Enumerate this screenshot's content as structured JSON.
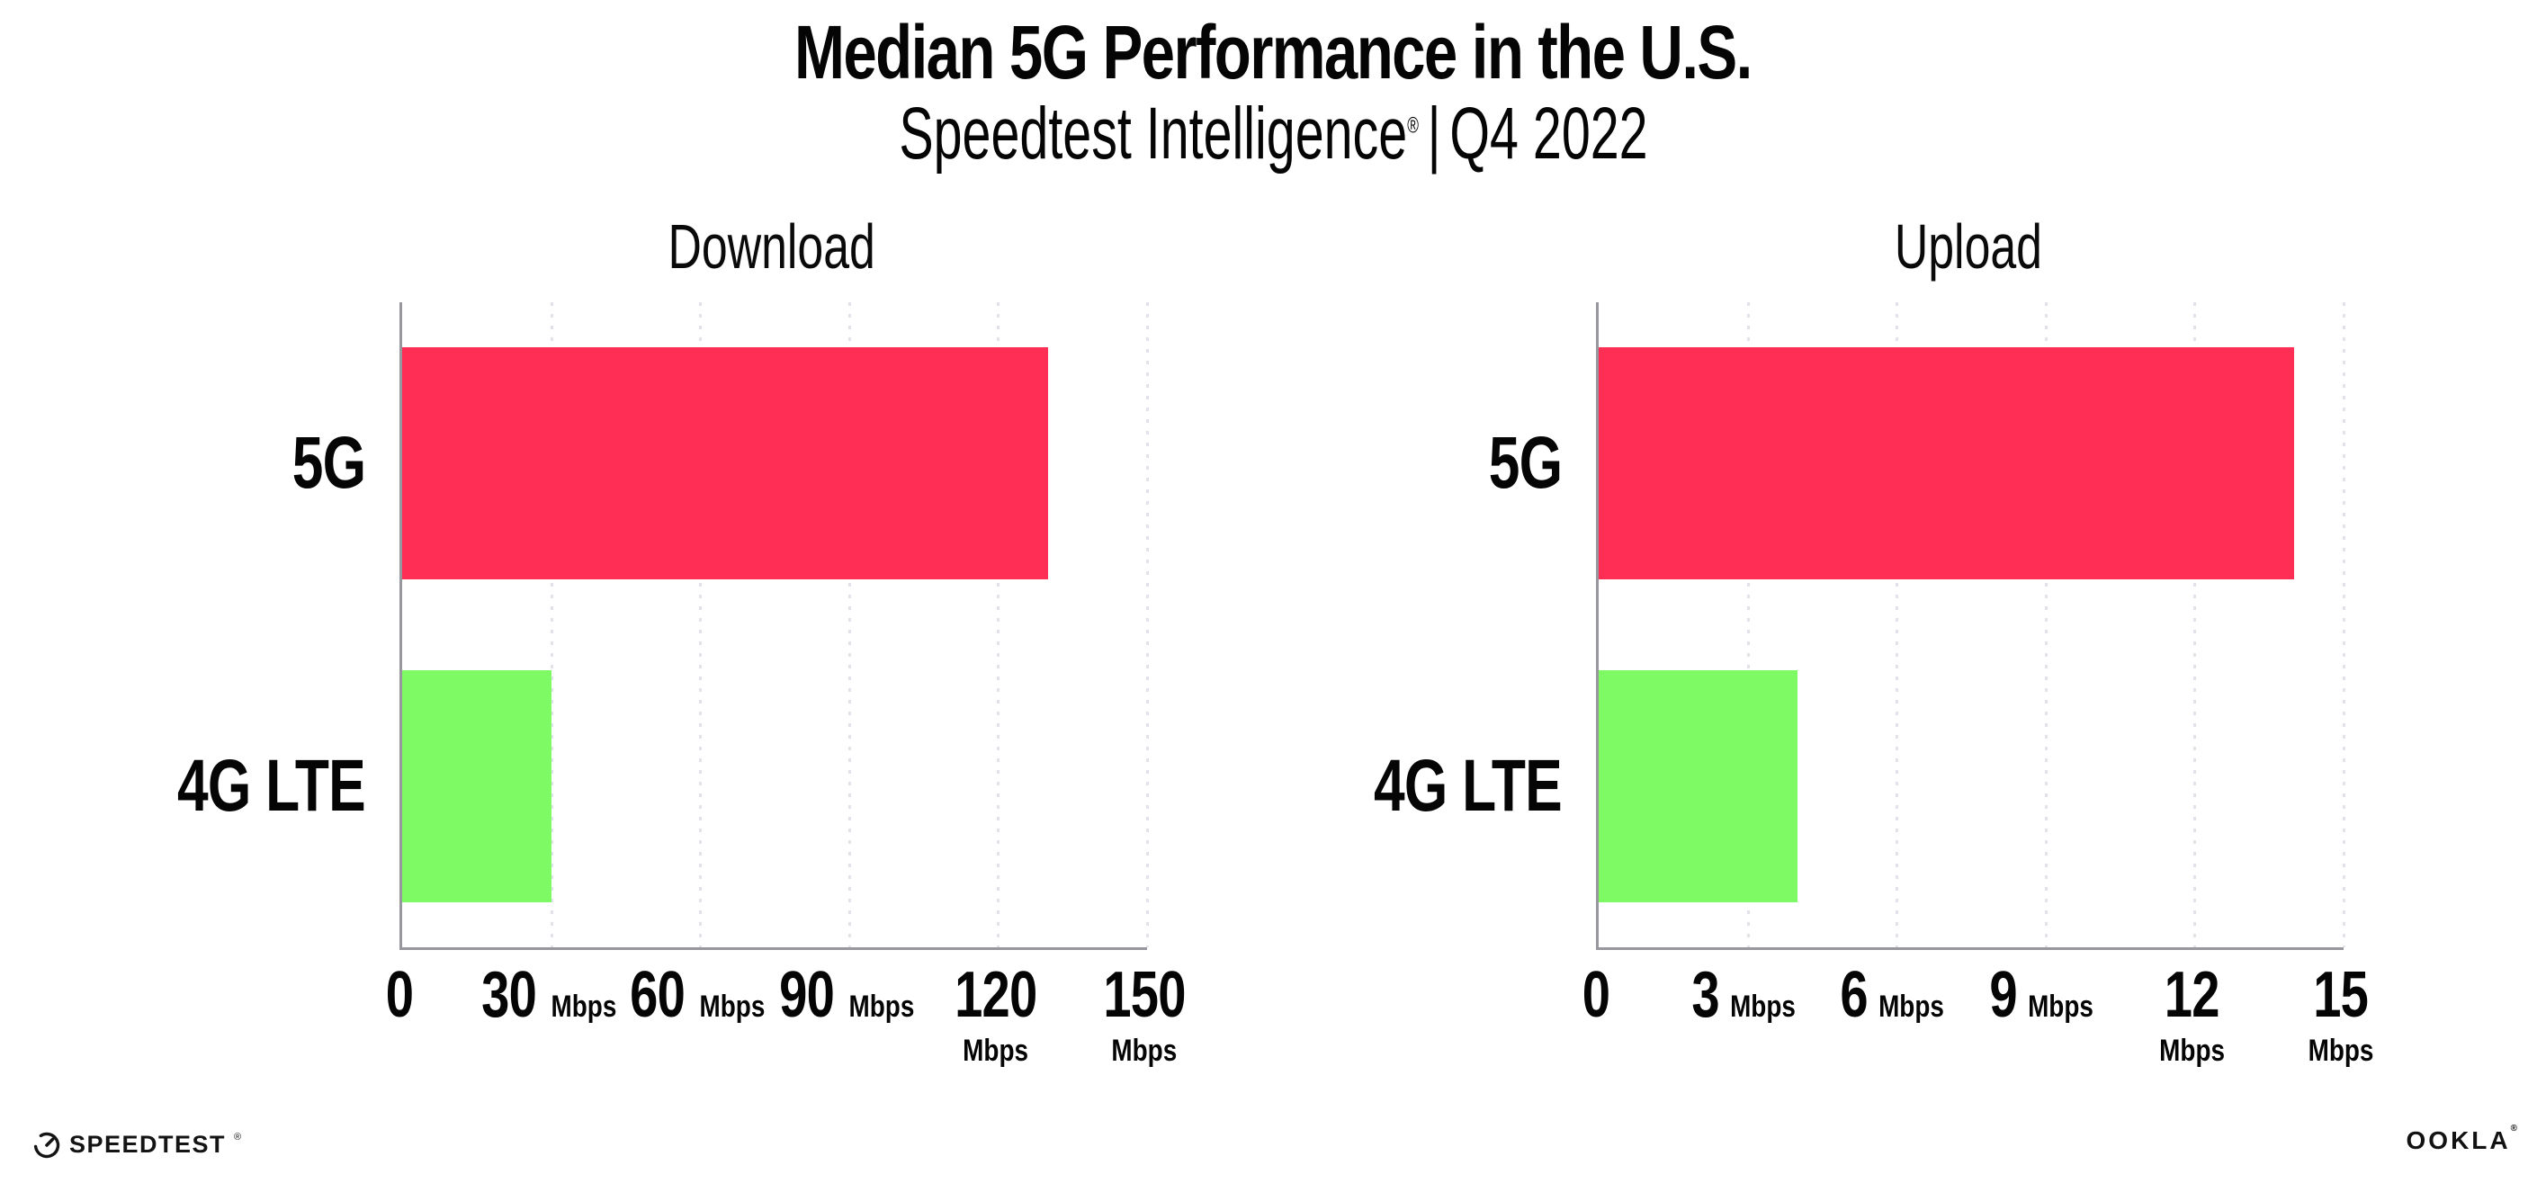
{
  "header": {
    "title": "Median 5G Performance in the U.S.",
    "subtitle": {
      "product": "Speedtest Intelligence",
      "reg_mark": "®",
      "separator": "|",
      "period": "Q4 2022"
    }
  },
  "chart_data": [
    {
      "type": "bar",
      "orientation": "horizontal",
      "title": "Download",
      "categories": [
        "5G",
        "4G LTE"
      ],
      "values": [
        130,
        30
      ],
      "unit": "Mbps",
      "xlim": [
        0,
        150
      ],
      "ticks": [
        {
          "num": "0",
          "unit": ""
        },
        {
          "num": "30",
          "unit": "Mbps"
        },
        {
          "num": "60",
          "unit": "Mbps"
        },
        {
          "num": "90",
          "unit": "Mbps"
        },
        {
          "num": "120",
          "unit": "Mbps"
        },
        {
          "num": "150",
          "unit": "Mbps"
        }
      ],
      "bar_colors": [
        "#ff2e55",
        "#7dfa64"
      ],
      "grid": "dotted-vertical",
      "legend": false
    },
    {
      "type": "bar",
      "orientation": "horizontal",
      "title": "Upload",
      "categories": [
        "5G",
        "4G LTE"
      ],
      "values": [
        14,
        4
      ],
      "unit": "Mbps",
      "xlim": [
        0,
        15
      ],
      "ticks": [
        {
          "num": "0",
          "unit": ""
        },
        {
          "num": "3",
          "unit": "Mbps"
        },
        {
          "num": "6",
          "unit": "Mbps"
        },
        {
          "num": "9",
          "unit": "Mbps"
        },
        {
          "num": "12",
          "unit": "Mbps"
        },
        {
          "num": "15",
          "unit": "Mbps"
        }
      ],
      "bar_colors": [
        "#ff2e55",
        "#7dfa64"
      ],
      "grid": "dotted-vertical",
      "legend": false
    }
  ],
  "footer": {
    "speedtest_logo_text": "SPEEDTEST",
    "speedtest_reg": "®",
    "ookla_logo_text": "OOKLA",
    "ookla_reg": "®"
  },
  "colors": {
    "bar_5g": "#ff2e55",
    "bar_4g_lte": "#7dfa64",
    "axis": "#97979d",
    "gridline": "#e2e2ea",
    "text": "#050505",
    "background": "#ffffff"
  }
}
